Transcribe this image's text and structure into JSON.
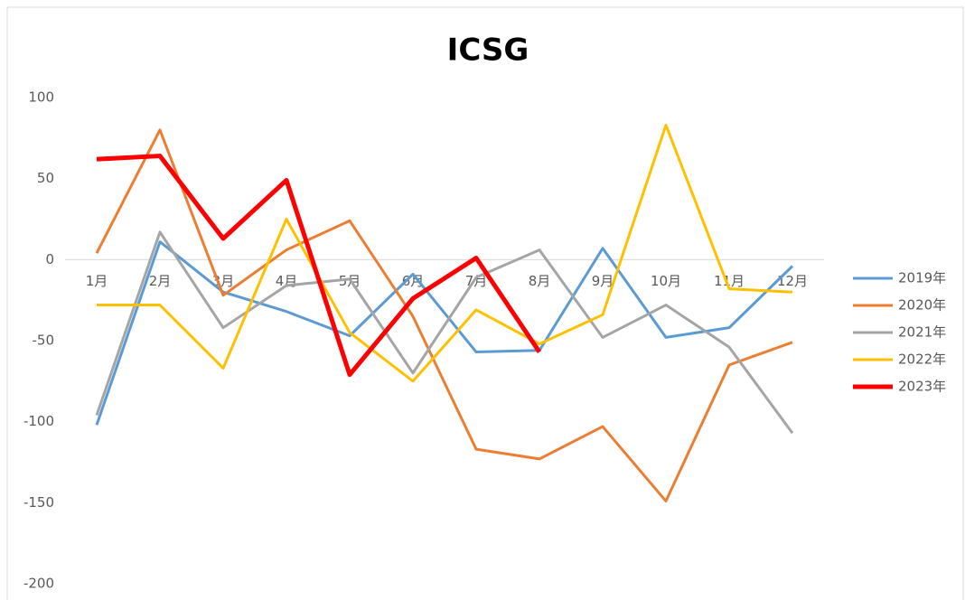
{
  "chart_data": {
    "type": "line",
    "title": "ICSG",
    "categories": [
      "1月",
      "2月",
      "3月",
      "4月",
      "5月",
      "6月",
      "7月",
      "8月",
      "9月",
      "10月",
      "11月",
      "12月"
    ],
    "series": [
      {
        "name": "2019年",
        "color": "#5b9bd5",
        "values": [
          -102,
          11,
          -20,
          -32,
          -47,
          -9,
          -57,
          -56,
          7,
          -48,
          -42,
          -4
        ]
      },
      {
        "name": "2020年",
        "color": "#ed7d31",
        "values": [
          4,
          80,
          -22,
          6,
          24,
          -35,
          -117,
          -123,
          -103,
          -149,
          -65,
          -51
        ]
      },
      {
        "name": "2021年",
        "color": "#a5a5a5",
        "values": [
          -96,
          17,
          -42,
          -16,
          -12,
          -70,
          -11,
          6,
          -48,
          -28,
          -54,
          -107
        ]
      },
      {
        "name": "2022年",
        "color": "#ffc000",
        "values": [
          -28,
          -28,
          -67,
          25,
          -45,
          -75,
          -31,
          -52,
          -34,
          83,
          -18,
          -20
        ]
      },
      {
        "name": "2023年",
        "color": "#ff0000",
        "values": [
          62,
          64,
          13,
          49,
          -71,
          -24,
          1,
          -57,
          null,
          null,
          null,
          null
        ]
      }
    ],
    "ylim": [
      -200,
      100
    ],
    "yticks": [
      -200,
      -150,
      -100,
      -50,
      0,
      50,
      100
    ],
    "grid": false,
    "legend": "right"
  }
}
